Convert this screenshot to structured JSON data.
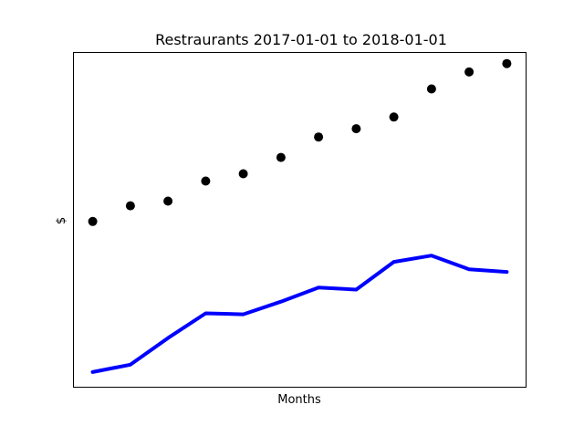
{
  "chart_data": {
    "type": "line",
    "title": "Restraurants 2017-01-01 to 2018-01-01",
    "xlabel": "Months",
    "ylabel": "$",
    "x": [
      1,
      2,
      3,
      4,
      5,
      6,
      7,
      8,
      9,
      10,
      11,
      12
    ],
    "xlim": [
      0.5,
      12.5
    ],
    "ylim": [
      0,
      100
    ],
    "grid": false,
    "ticks": false,
    "series": [
      {
        "kind": "scatter",
        "color": "#000000",
        "marker": "circle",
        "values": [
          49.5,
          54.2,
          55.6,
          61.6,
          63.8,
          68.7,
          74.8,
          77.3,
          80.8,
          89.2,
          94.3,
          96.8
        ]
      },
      {
        "kind": "line",
        "color": "#0000ff",
        "values": [
          4.4,
          6.6,
          14.6,
          22.0,
          21.7,
          25.5,
          29.7,
          29.1,
          37.4,
          39.3,
          35.2,
          34.4
        ]
      }
    ]
  }
}
